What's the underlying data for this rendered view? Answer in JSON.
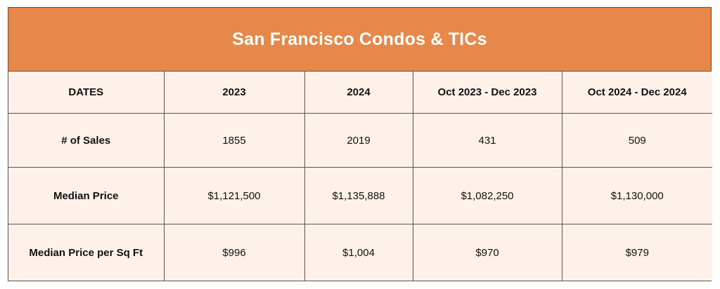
{
  "title": "San Francisco Condos & TICs",
  "columns": [
    "DATES",
    "2023",
    "2024",
    "Oct 2023 - Dec 2023",
    "Oct 2024 - Dec 2024"
  ],
  "rows": [
    {
      "label": "# of Sales",
      "values": [
        "1855",
        "2019",
        "431",
        "509"
      ]
    },
    {
      "label": "Median Price",
      "values": [
        "$1,121,500",
        "$1,135,888",
        "$1,082,250",
        "$1,130,000"
      ]
    },
    {
      "label": "Median Price per Sq Ft",
      "values": [
        "$996",
        "$1,004",
        "$970",
        "$979"
      ]
    }
  ],
  "colors": {
    "title_background": "#e5884a",
    "table_background": "#fdf1ea",
    "border": "#555555"
  }
}
